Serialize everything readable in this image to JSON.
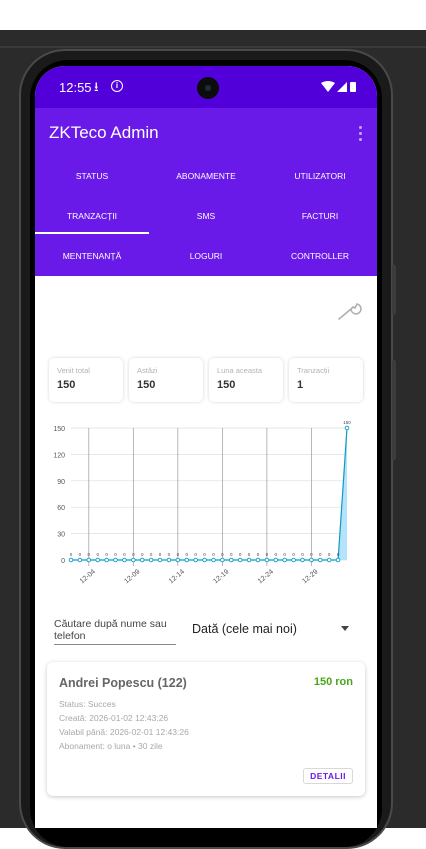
{
  "status_bar": {
    "time": "12:55"
  },
  "app": {
    "title": "ZKTeco Admin"
  },
  "tabs": [
    {
      "label": "STATUS"
    },
    {
      "label": "ABONAMENTE"
    },
    {
      "label": "UTILIZATORI"
    },
    {
      "label": "TRANZACȚII"
    },
    {
      "label": "SMS"
    },
    {
      "label": "FACTURI"
    },
    {
      "label": "MENTENANȚĂ"
    },
    {
      "label": "LOGURI"
    },
    {
      "label": "CONTROLLER"
    }
  ],
  "active_tab": "TRANZACȚII",
  "stats": [
    {
      "label": "Venit total",
      "value": "150"
    },
    {
      "label": "Astăzi",
      "value": "150"
    },
    {
      "label": "Luna aceasta",
      "value": "150"
    },
    {
      "label": "Tranzacții",
      "value": "1"
    }
  ],
  "chart_data": {
    "type": "area",
    "x_tick_labels": [
      "12-04",
      "12-09",
      "12-14",
      "12-19",
      "12-24",
      "12-29"
    ],
    "y_ticks": [
      0,
      30,
      60,
      90,
      120,
      150
    ],
    "ylim": [
      0,
      150
    ],
    "values": [
      0,
      0,
      0,
      0,
      0,
      0,
      0,
      0,
      0,
      0,
      0,
      0,
      0,
      0,
      0,
      0,
      0,
      0,
      0,
      0,
      0,
      0,
      0,
      0,
      0,
      0,
      0,
      0,
      0,
      0,
      0,
      150
    ],
    "grid": true,
    "color": "#0d9ac9",
    "fill_color": "#b5e3f9"
  },
  "search": {
    "placeholder": "Căutare după nume sau telefon"
  },
  "sort": {
    "label": "Dată (cele mai noi)"
  },
  "transaction": {
    "name": "Andrei Popescu (122)",
    "amount": "150 ron",
    "status": "Status: Succes",
    "created": "Creată: 2026-01-02 12:43:26",
    "valid_until": "Valabil până: 2026-02-01 12:43:26",
    "subscription": "Abonament: o luna • 30 zile",
    "button": "DETALII"
  },
  "colors": {
    "primary": "#6a1ae8",
    "status_bar": "#5200d9",
    "amount": "#4aa51a"
  }
}
